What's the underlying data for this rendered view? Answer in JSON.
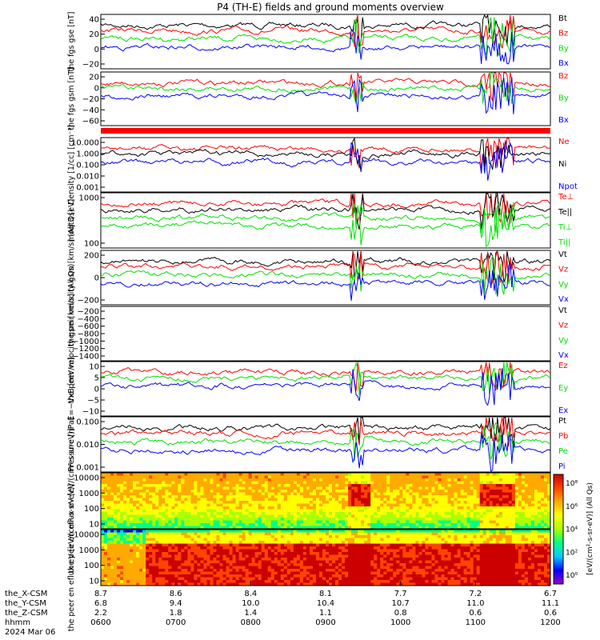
{
  "title": "P4 (TH-E) fields and ground moments overview",
  "time_axis": {
    "ticks": [
      "0600",
      "0700",
      "0800",
      "0900",
      "1000",
      "1100",
      "1200"
    ],
    "date": "2024 Mar 06",
    "rows": [
      {
        "label": "the_X-CSM",
        "values": [
          "8.7",
          "8.6",
          "8.4",
          "8.1",
          "7.7",
          "7.2",
          "6.7"
        ]
      },
      {
        "label": "the_Y-CSM",
        "values": [
          "6.8",
          "9.4",
          "10.0",
          "10.4",
          "10.7",
          "11.0",
          "11.1"
        ]
      },
      {
        "label": "the_Z-CSM",
        "values": [
          "2.2",
          "1.8",
          "1.4",
          "1.1",
          "0.8",
          "0.6",
          "0.6"
        ]
      },
      {
        "label": "hhmm",
        "values": [
          "0600",
          "0700",
          "0800",
          "0900",
          "1000",
          "1100",
          "1200"
        ]
      }
    ],
    "date_label": "2024 Mar 06"
  },
  "colorbar": {
    "labels": [
      "10⁸",
      "10⁶",
      "10⁴",
      "10²",
      "10⁰"
    ],
    "title": "[eV/(cm²-s-sr-eV)] (All Qs)"
  },
  "chart_data": [
    {
      "type": "line",
      "ylabel": "the fgs gse [nT]",
      "ylim": [
        -20,
        45
      ],
      "ticks": [
        "40",
        "20",
        "0",
        "−20"
      ],
      "series": [
        {
          "name": "Bt",
          "color": "#000000"
        },
        {
          "name": "Bz",
          "color": "#ff0000"
        },
        {
          "name": "By",
          "color": "#00e000"
        },
        {
          "name": "Bx",
          "color": "#0000ff"
        }
      ]
    },
    {
      "type": "line",
      "ylabel": "the fgs gsm [nT]",
      "ylim": [
        -90,
        35
      ],
      "ticks": [
        "20",
        "0",
        "−20",
        "−40",
        "−60"
      ],
      "series": [
        {
          "name": "Bz",
          "color": "#ff0000"
        },
        {
          "name": "By",
          "color": "#00e000"
        },
        {
          "name": "Bx",
          "color": "#0000ff"
        }
      ]
    },
    {
      "type": "line",
      "ylabel": "Density [1/cc] [cm⁻³]",
      "scale": "log",
      "ylim": [
        0.001,
        30
      ],
      "ticks": [
        "10.000",
        "1.000",
        "0.100",
        "0.010",
        "0.001"
      ],
      "series": [
        {
          "name": "Ne",
          "color": "#ff0000"
        },
        {
          "name": "Ni",
          "color": "#000000"
        },
        {
          "name": "Npot",
          "color": "#0000ff"
        }
      ]
    },
    {
      "type": "line",
      "ylabel": "moqt3 [eV]",
      "scale": "log",
      "ylim": [
        30,
        5000
      ],
      "ticks": [
        "1000",
        "100"
      ],
      "series": [
        {
          "name": "Te⊥",
          "color": "#ff0000"
        },
        {
          "name": "Te||",
          "color": "#000000"
        },
        {
          "name": "Ti⊥",
          "color": "#00e000"
        },
        {
          "name": "Ti||",
          "color": "#00e000"
        }
      ]
    },
    {
      "type": "line",
      "ylabel": "the peir velocity gsm [km/s] (All Qs)",
      "ylim": [
        -260,
        420
      ],
      "ticks": [
        "200",
        "0",
        "−200"
      ],
      "series": [
        {
          "name": "Vt",
          "color": "#000000"
        },
        {
          "name": "Vz",
          "color": "#ff0000"
        },
        {
          "name": "Vy",
          "color": "#00e000"
        },
        {
          "name": "Vx",
          "color": "#0000ff"
        }
      ]
    },
    {
      "type": "line",
      "ylabel": "the peer velocity gsm [km/s] (All Qs)",
      "ylim": [
        -1500,
        -50
      ],
      "ticks": [
        "−200",
        "−400",
        "−600",
        "−800",
        "−1000",
        "−1200",
        "−1400"
      ],
      "series": [
        {
          "name": "Vt",
          "color": "#000000"
        },
        {
          "name": "Vz",
          "color": "#ff0000"
        },
        {
          "name": "Vy",
          "color": "#00e000"
        },
        {
          "name": "Vx",
          "color": "#0000ff"
        }
      ]
    },
    {
      "type": "line",
      "ylabel": "E=−VxB [mV/m]",
      "ylim": [
        -12,
        10
      ],
      "ticks": [
        "10",
        "5",
        "0",
        "−5",
        "−10"
      ],
      "series": [
        {
          "name": "Ez",
          "color": "#ff0000"
        },
        {
          "name": "Ey",
          "color": "#00e000"
        },
        {
          "name": "Ex",
          "color": "#0000ff"
        }
      ]
    },
    {
      "type": "line",
      "ylabel": "Pressure [nPa]",
      "scale": "log",
      "ylim": [
        0.0006,
        1.5
      ],
      "ticks": [
        "0.100",
        "0.010",
        "0.001"
      ],
      "series": [
        {
          "name": "Pt",
          "color": "#000000"
        },
        {
          "name": "Pb",
          "color": "#ff0000"
        },
        {
          "name": "Pe",
          "color": "#00e000"
        },
        {
          "name": "Pi",
          "color": "#0000ff"
        }
      ]
    },
    {
      "type": "heatmap",
      "ylabel": "the peir en eflux eV [eV/(cm²-s-sr-eV)]",
      "scale": "log",
      "ylim": [
        5,
        30000
      ],
      "ticks": [
        "10000",
        "1000",
        "100",
        "10"
      ]
    },
    {
      "type": "heatmap",
      "ylabel": "the peer en eflux eV [eV/(cm²-s-sr-eV)]",
      "scale": "log",
      "ylim": [
        5,
        30000
      ],
      "ticks": [
        "10000",
        "1000",
        "100",
        "10"
      ]
    }
  ]
}
